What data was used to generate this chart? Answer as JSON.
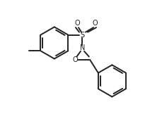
{
  "bg_color": "#ffffff",
  "line_color": "#222222",
  "line_width": 1.4,
  "figsize": [
    2.29,
    1.62
  ],
  "dpi": 100,
  "xlim": [
    0,
    9
  ],
  "ylim": [
    0,
    6.4
  ]
}
